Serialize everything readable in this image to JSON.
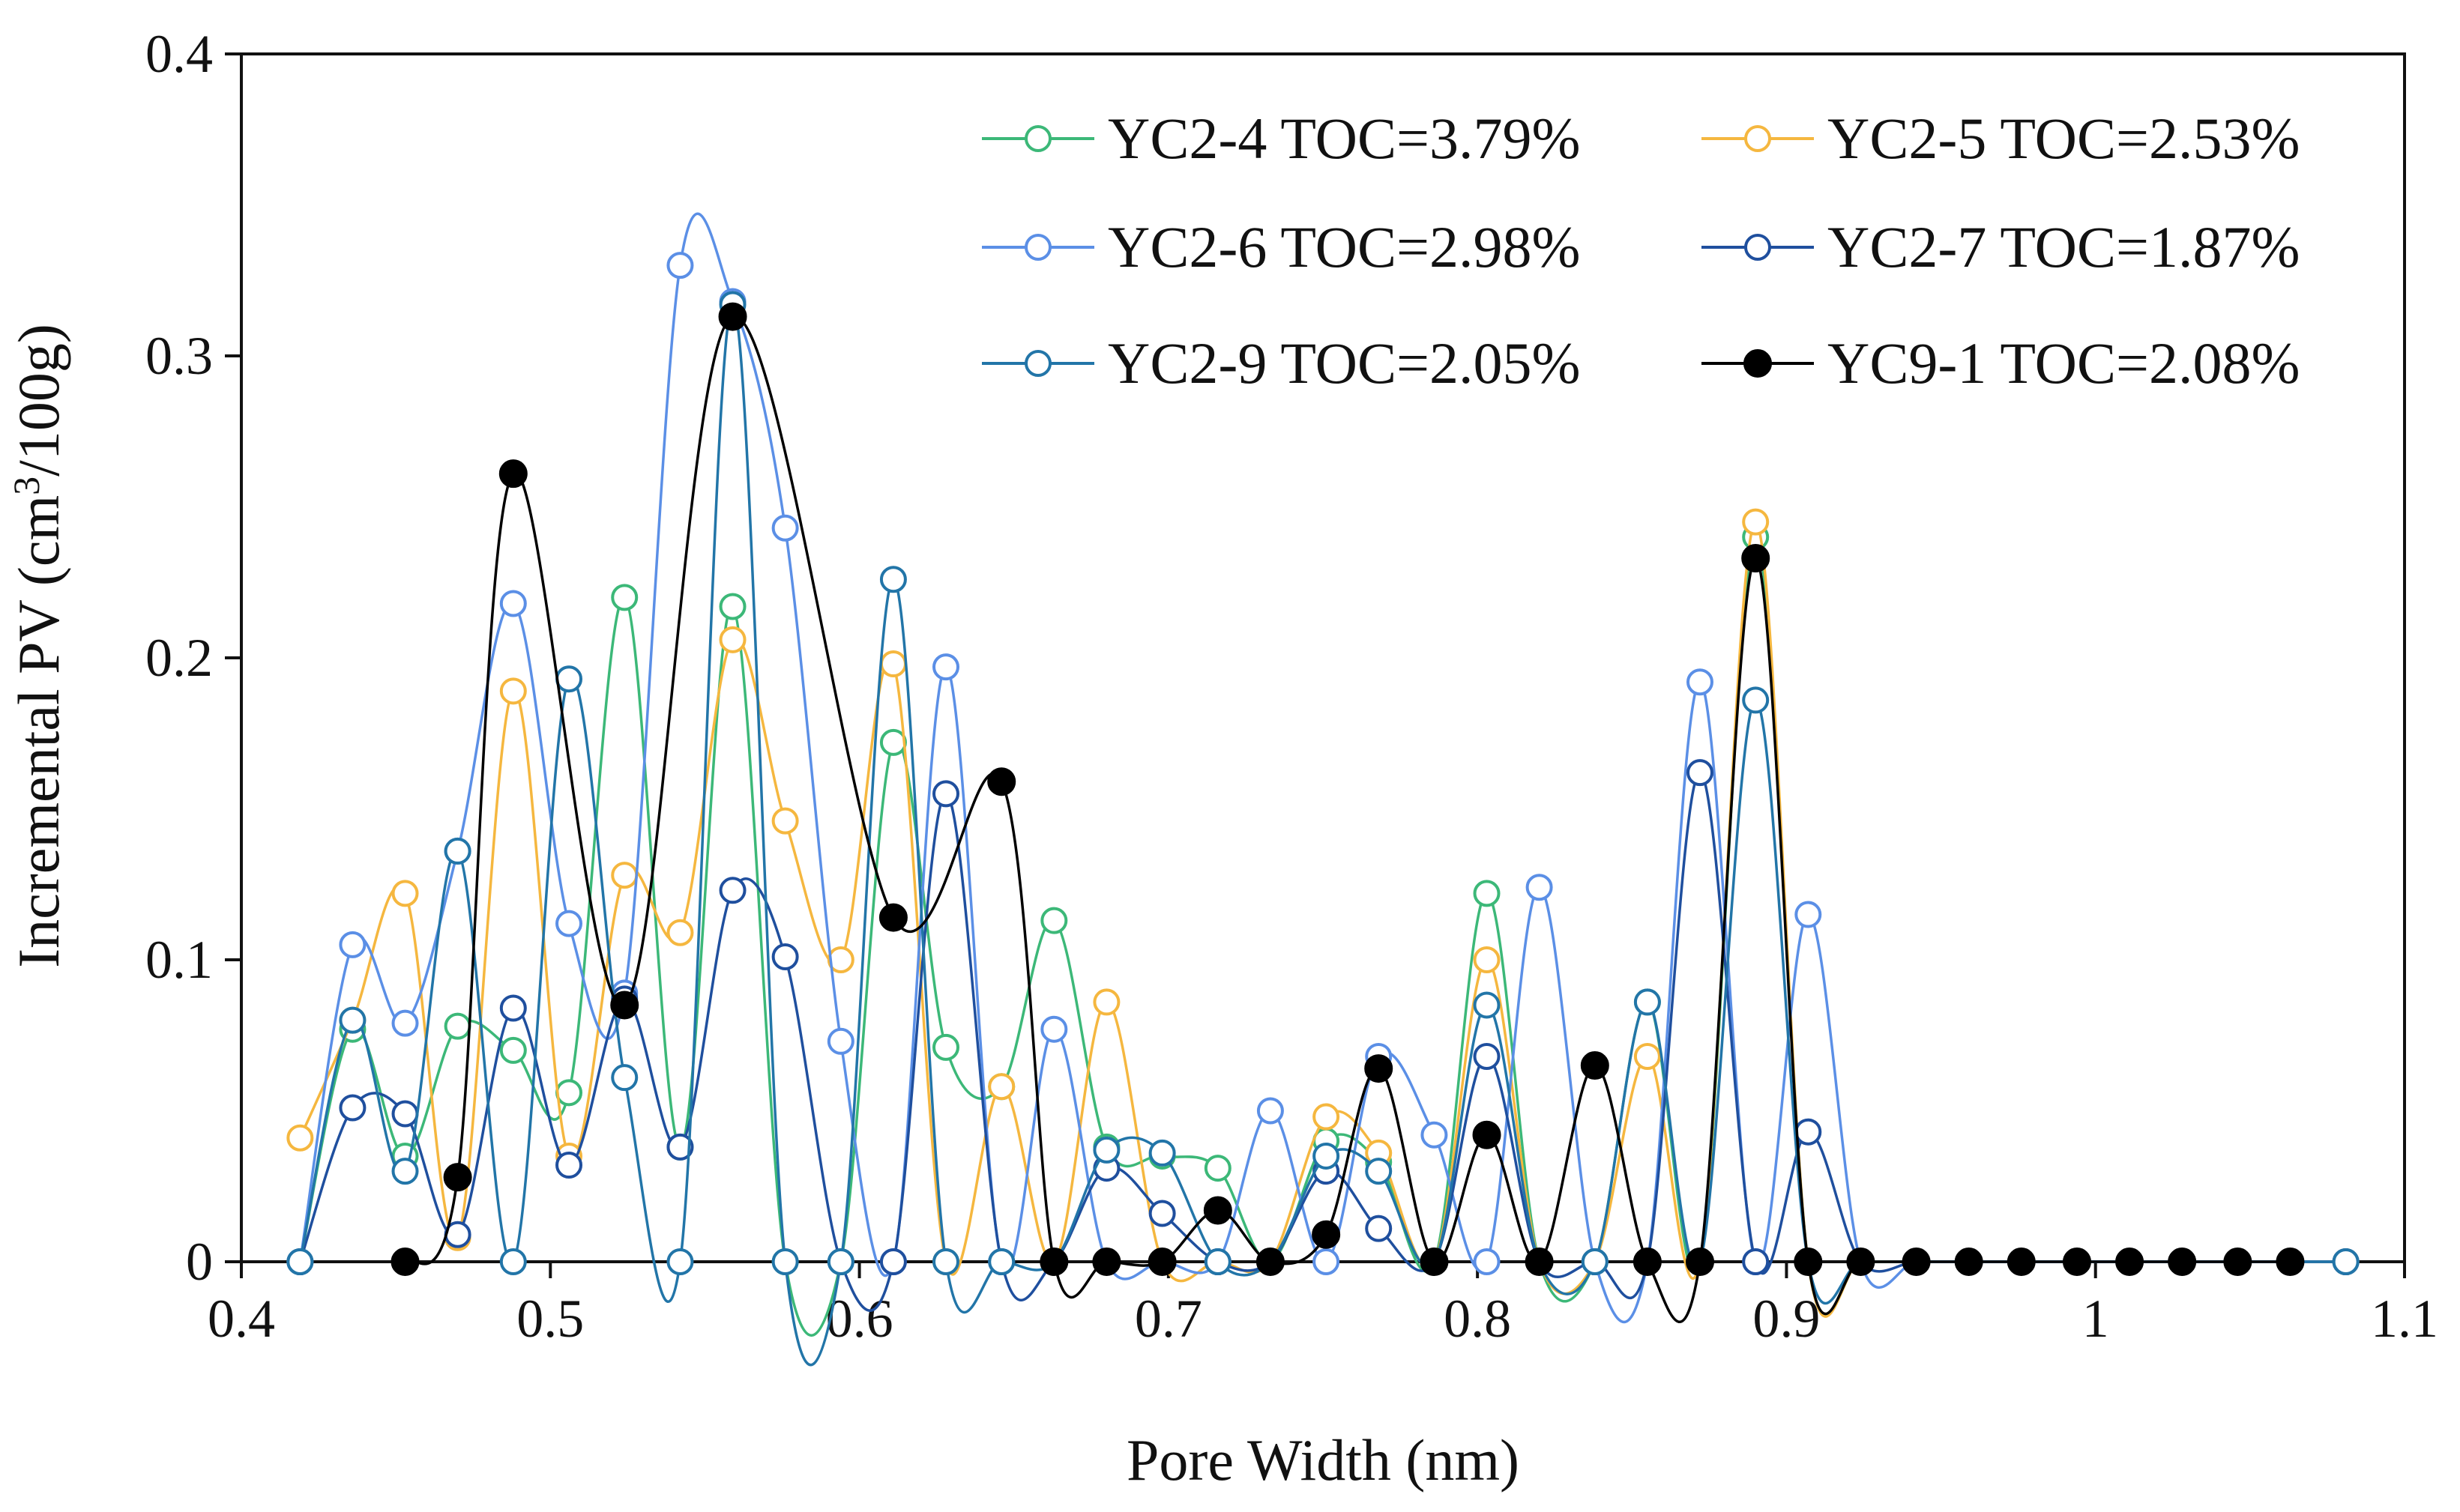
{
  "chart_data": {
    "type": "line",
    "xlabel": "Pore Width (nm)",
    "ylabel_main": "Incremental PV (cm",
    "ylabel_sup": "3",
    "ylabel_tail": "/100g)",
    "xlim": [
      0.4,
      1.1
    ],
    "ylim": [
      0,
      0.4
    ],
    "xticks": [
      0.4,
      0.5,
      0.6,
      0.7,
      0.8,
      0.9,
      1.0,
      1.1
    ],
    "xtick_labels": [
      "0.4",
      "0.5",
      "0.6",
      "0.7",
      "0.8",
      "0.9",
      "1",
      "1.1"
    ],
    "yticks": [
      0,
      0.1,
      0.2,
      0.3,
      0.4
    ],
    "ytick_labels": [
      "0",
      "0.1",
      "0.2",
      "0.3",
      "0.4"
    ],
    "grid": false,
    "legend_position": "top-right",
    "series": [
      {
        "name": "YC2-4 TOC=3.79%",
        "color": "#3cb878",
        "marker": "open-circle",
        "points": [
          [
            0.419,
            0.0
          ],
          [
            0.436,
            0.077
          ],
          [
            0.453,
            0.035
          ],
          [
            0.47,
            0.078
          ],
          [
            0.488,
            0.07
          ],
          [
            0.506,
            0.056
          ],
          [
            0.524,
            0.22
          ],
          [
            0.542,
            0.038
          ],
          [
            0.559,
            0.217
          ],
          [
            0.576,
            0.0
          ],
          [
            0.594,
            0.0
          ],
          [
            0.611,
            0.172
          ],
          [
            0.628,
            0.071
          ],
          [
            0.646,
            0.058
          ],
          [
            0.663,
            0.113
          ],
          [
            0.68,
            0.038
          ],
          [
            0.698,
            0.035
          ],
          [
            0.716,
            0.031
          ],
          [
            0.733,
            0.0
          ],
          [
            0.751,
            0.04
          ],
          [
            0.768,
            0.033
          ],
          [
            0.786,
            0.0
          ],
          [
            0.803,
            0.122
          ],
          [
            0.82,
            0.0
          ],
          [
            0.838,
            0.0
          ],
          [
            0.855,
            0.086
          ],
          [
            0.872,
            0.0
          ],
          [
            0.89,
            0.24
          ],
          [
            0.907,
            0.0
          ],
          [
            0.924,
            0.0
          ],
          [
            0.942,
            0.0
          ],
          [
            0.959,
            0.0
          ],
          [
            0.976,
            0.0
          ],
          [
            0.994,
            0.0
          ],
          [
            1.011,
            0.0
          ],
          [
            1.028,
            0.0
          ],
          [
            1.046,
            0.0
          ],
          [
            1.063,
            0.0
          ],
          [
            1.081,
            0.0
          ]
        ]
      },
      {
        "name": "YC2-5 TOC=2.53%",
        "color": "#f5b73f",
        "marker": "open-circle",
        "points": [
          [
            0.419,
            0.041
          ],
          [
            0.436,
            0.08
          ],
          [
            0.453,
            0.122
          ],
          [
            0.47,
            0.008
          ],
          [
            0.488,
            0.189
          ],
          [
            0.506,
            0.035
          ],
          [
            0.524,
            0.128
          ],
          [
            0.542,
            0.109
          ],
          [
            0.559,
            0.206
          ],
          [
            0.576,
            0.146
          ],
          [
            0.594,
            0.1
          ],
          [
            0.611,
            0.198
          ],
          [
            0.628,
            0.0
          ],
          [
            0.646,
            0.058
          ],
          [
            0.663,
            0.0
          ],
          [
            0.68,
            0.086
          ],
          [
            0.698,
            0.0
          ],
          [
            0.716,
            0.0
          ],
          [
            0.733,
            0.0
          ],
          [
            0.751,
            0.048
          ],
          [
            0.768,
            0.036
          ],
          [
            0.786,
            0.0
          ],
          [
            0.803,
            0.1
          ],
          [
            0.82,
            0.0
          ],
          [
            0.838,
            0.0
          ],
          [
            0.855,
            0.068
          ],
          [
            0.872,
            0.0
          ],
          [
            0.89,
            0.245
          ],
          [
            0.907,
            0.0
          ],
          [
            0.924,
            0.0
          ],
          [
            0.942,
            0.0
          ],
          [
            0.959,
            0.0
          ],
          [
            0.976,
            0.0
          ],
          [
            0.994,
            0.0
          ],
          [
            1.011,
            0.0
          ],
          [
            1.028,
            0.0
          ],
          [
            1.046,
            0.0
          ],
          [
            1.063,
            0.0
          ],
          [
            1.081,
            0.0
          ]
        ]
      },
      {
        "name": "YC2-6 TOC=2.98%",
        "color": "#5b8fe6",
        "marker": "open-circle",
        "points": [
          [
            0.419,
            0.0
          ],
          [
            0.436,
            0.105
          ],
          [
            0.453,
            0.079
          ],
          [
            0.47,
            0.136
          ],
          [
            0.488,
            0.218
          ],
          [
            0.506,
            0.112
          ],
          [
            0.524,
            0.089
          ],
          [
            0.542,
            0.33
          ],
          [
            0.559,
            0.318
          ],
          [
            0.576,
            0.243
          ],
          [
            0.594,
            0.073
          ],
          [
            0.611,
            0.0
          ],
          [
            0.628,
            0.197
          ],
          [
            0.646,
            0.0
          ],
          [
            0.663,
            0.077
          ],
          [
            0.68,
            0.0
          ],
          [
            0.698,
            0.0
          ],
          [
            0.716,
            0.0
          ],
          [
            0.733,
            0.05
          ],
          [
            0.751,
            0.0
          ],
          [
            0.768,
            0.068
          ],
          [
            0.786,
            0.042
          ],
          [
            0.803,
            0.0
          ],
          [
            0.82,
            0.124
          ],
          [
            0.838,
            0.0
          ],
          [
            0.855,
            0.0
          ],
          [
            0.872,
            0.192
          ],
          [
            0.89,
            0.0
          ],
          [
            0.907,
            0.115
          ],
          [
            0.924,
            0.0
          ],
          [
            0.942,
            0.0
          ],
          [
            0.959,
            0.0
          ],
          [
            0.976,
            0.0
          ],
          [
            0.994,
            0.0
          ],
          [
            1.011,
            0.0
          ],
          [
            1.028,
            0.0
          ],
          [
            1.046,
            0.0
          ],
          [
            1.063,
            0.0
          ],
          [
            1.081,
            0.0
          ]
        ]
      },
      {
        "name": "YC2-7 TOC=1.87%",
        "color": "#1f4f9e",
        "marker": "open-circle",
        "points": [
          [
            0.419,
            0.0
          ],
          [
            0.436,
            0.051
          ],
          [
            0.453,
            0.049
          ],
          [
            0.47,
            0.009
          ],
          [
            0.488,
            0.084
          ],
          [
            0.506,
            0.032
          ],
          [
            0.524,
            0.087
          ],
          [
            0.542,
            0.038
          ],
          [
            0.559,
            0.123
          ],
          [
            0.576,
            0.101
          ],
          [
            0.594,
            0.0
          ],
          [
            0.611,
            0.0
          ],
          [
            0.628,
            0.155
          ],
          [
            0.646,
            0.0
          ],
          [
            0.663,
            0.0
          ],
          [
            0.68,
            0.031
          ],
          [
            0.698,
            0.016
          ],
          [
            0.716,
            0.0
          ],
          [
            0.733,
            0.0
          ],
          [
            0.751,
            0.03
          ],
          [
            0.768,
            0.011
          ],
          [
            0.786,
            0.0
          ],
          [
            0.803,
            0.068
          ],
          [
            0.82,
            0.0
          ],
          [
            0.838,
            0.0
          ],
          [
            0.855,
            0.0
          ],
          [
            0.872,
            0.162
          ],
          [
            0.89,
            0.0
          ],
          [
            0.907,
            0.043
          ],
          [
            0.924,
            0.0
          ],
          [
            0.942,
            0.0
          ],
          [
            0.959,
            0.0
          ],
          [
            0.976,
            0.0
          ],
          [
            0.994,
            0.0
          ],
          [
            1.011,
            0.0
          ],
          [
            1.028,
            0.0
          ],
          [
            1.046,
            0.0
          ],
          [
            1.063,
            0.0
          ],
          [
            1.081,
            0.0
          ]
        ]
      },
      {
        "name": "YC2-9 TOC=2.05%",
        "color": "#2275a8",
        "marker": "open-circle",
        "points": [
          [
            0.419,
            0.0
          ],
          [
            0.436,
            0.08
          ],
          [
            0.453,
            0.03
          ],
          [
            0.47,
            0.136
          ],
          [
            0.488,
            0.0
          ],
          [
            0.506,
            0.193
          ],
          [
            0.524,
            0.061
          ],
          [
            0.542,
            0.0
          ],
          [
            0.559,
            0.317
          ],
          [
            0.576,
            0.0
          ],
          [
            0.594,
            0.0
          ],
          [
            0.611,
            0.226
          ],
          [
            0.628,
            0.0
          ],
          [
            0.646,
            0.0
          ],
          [
            0.663,
            0.0
          ],
          [
            0.68,
            0.037
          ],
          [
            0.698,
            0.036
          ],
          [
            0.716,
            0.0
          ],
          [
            0.733,
            0.0
          ],
          [
            0.751,
            0.035
          ],
          [
            0.768,
            0.03
          ],
          [
            0.786,
            0.0
          ],
          [
            0.803,
            0.085
          ],
          [
            0.82,
            0.0
          ],
          [
            0.838,
            0.0
          ],
          [
            0.855,
            0.086
          ],
          [
            0.872,
            0.0
          ],
          [
            0.89,
            0.186
          ],
          [
            0.907,
            0.0
          ],
          [
            0.924,
            0.0
          ],
          [
            0.942,
            0.0
          ],
          [
            0.959,
            0.0
          ],
          [
            0.976,
            0.0
          ],
          [
            0.994,
            0.0
          ],
          [
            1.011,
            0.0
          ],
          [
            1.028,
            0.0
          ],
          [
            1.046,
            0.0
          ],
          [
            1.063,
            0.0
          ],
          [
            1.081,
            0.0
          ]
        ]
      },
      {
        "name": "YC9-1 TOC=2.08%",
        "color": "#000000",
        "marker": "filled-circle",
        "points": [
          [
            0.453,
            0.0
          ],
          [
            0.47,
            0.028
          ],
          [
            0.488,
            0.261
          ],
          [
            0.524,
            0.085
          ],
          [
            0.559,
            0.313
          ],
          [
            0.611,
            0.114
          ],
          [
            0.646,
            0.159
          ],
          [
            0.663,
            0.0
          ],
          [
            0.68,
            0.0
          ],
          [
            0.698,
            0.0
          ],
          [
            0.716,
            0.017
          ],
          [
            0.733,
            0.0
          ],
          [
            0.751,
            0.009
          ],
          [
            0.768,
            0.064
          ],
          [
            0.786,
            0.0
          ],
          [
            0.803,
            0.042
          ],
          [
            0.82,
            0.0
          ],
          [
            0.838,
            0.065
          ],
          [
            0.855,
            0.0
          ],
          [
            0.872,
            0.0
          ],
          [
            0.89,
            0.233
          ],
          [
            0.907,
            0.0
          ],
          [
            0.924,
            0.0
          ],
          [
            0.942,
            0.0
          ],
          [
            0.959,
            0.0
          ],
          [
            0.976,
            0.0
          ],
          [
            0.994,
            0.0
          ],
          [
            1.011,
            0.0
          ],
          [
            1.028,
            0.0
          ],
          [
            1.046,
            0.0
          ],
          [
            1.063,
            0.0
          ]
        ]
      }
    ]
  }
}
